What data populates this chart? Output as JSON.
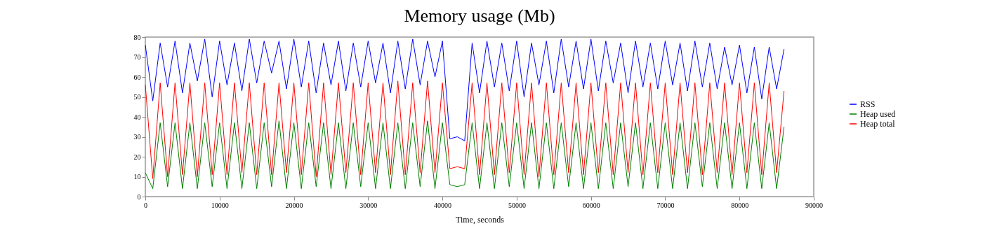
{
  "chart_data": {
    "type": "line",
    "title": "Memory usage (Mb)",
    "xlabel": "Time, seconds",
    "x": [
      0,
      1000,
      2000,
      3000,
      4000,
      5000,
      6000,
      7000,
      8000,
      9000,
      10000,
      11000,
      12000,
      13000,
      14000,
      15000,
      16000,
      17000,
      18000,
      19000,
      20000,
      21000,
      22000,
      23000,
      24000,
      25000,
      26000,
      27000,
      28000,
      29000,
      30000,
      31000,
      32000,
      33000,
      34000,
      35000,
      36000,
      37000,
      38000,
      39000,
      40000,
      41000,
      42000,
      43000,
      44000,
      45000,
      46000,
      47000,
      48000,
      49000,
      50000,
      51000,
      52000,
      53000,
      54000,
      55000,
      56000,
      57000,
      58000,
      59000,
      60000,
      61000,
      62000,
      63000,
      64000,
      65000,
      66000,
      67000,
      68000,
      69000,
      70000,
      71000,
      72000,
      73000,
      74000,
      75000,
      76000,
      77000,
      78000,
      79000,
      80000,
      81000,
      82000,
      83000,
      84000,
      85000,
      86000
    ],
    "series": [
      {
        "name": "RSS",
        "color": "#0000ff",
        "values": [
          76,
          48,
          77,
          55,
          78,
          52,
          77,
          58,
          79,
          50,
          78,
          56,
          77,
          53,
          79,
          57,
          78,
          62,
          78,
          54,
          79,
          55,
          78,
          52,
          77,
          56,
          78,
          53,
          77,
          55,
          78,
          57,
          77,
          52,
          78,
          54,
          79,
          56,
          78,
          60,
          78,
          29,
          30,
          28,
          77,
          52,
          78,
          55,
          77,
          53,
          78,
          50,
          77,
          56,
          78,
          52,
          79,
          55,
          78,
          54,
          79,
          53,
          78,
          57,
          77,
          52,
          78,
          55,
          77,
          54,
          78,
          56,
          77,
          53,
          78,
          55,
          77,
          54,
          75,
          56,
          76,
          52,
          75,
          49,
          75,
          54,
          74
        ]
      },
      {
        "name": "Heap used",
        "color": "#008000",
        "values": [
          12,
          4,
          37,
          5,
          37,
          4,
          37,
          4,
          37,
          5,
          37,
          4,
          37,
          4,
          37,
          4,
          37,
          5,
          38,
          4,
          37,
          4,
          37,
          5,
          37,
          4,
          37,
          4,
          37,
          5,
          37,
          4,
          37,
          4,
          37,
          4,
          37,
          5,
          38,
          4,
          37,
          6,
          5,
          6,
          37,
          4,
          37,
          4,
          37,
          5,
          37,
          4,
          37,
          4,
          37,
          4,
          37,
          5,
          37,
          4,
          37,
          4,
          37,
          4,
          37,
          5,
          37,
          4,
          37,
          4,
          37,
          4,
          37,
          4,
          37,
          5,
          37,
          4,
          37,
          4,
          37,
          4,
          37,
          4,
          37,
          4,
          35
        ]
      },
      {
        "name": "Heap total",
        "color": "#ff0000",
        "values": [
          56,
          9,
          57,
          10,
          57,
          11,
          57,
          10,
          57,
          11,
          57,
          11,
          57,
          12,
          57,
          11,
          57,
          11,
          57,
          12,
          57,
          11,
          57,
          10,
          57,
          11,
          57,
          12,
          57,
          11,
          57,
          12,
          57,
          11,
          58,
          11,
          57,
          12,
          58,
          12,
          57,
          14,
          15,
          14,
          57,
          11,
          57,
          11,
          57,
          12,
          57,
          11,
          57,
          10,
          57,
          11,
          57,
          12,
          57,
          11,
          57,
          12,
          57,
          11,
          57,
          12,
          57,
          11,
          57,
          12,
          57,
          11,
          57,
          12,
          57,
          11,
          57,
          12,
          57,
          11,
          57,
          12,
          57,
          11,
          57,
          12,
          53
        ]
      }
    ],
    "xlim": [
      0,
      90000
    ],
    "xticks": [
      0,
      10000,
      20000,
      30000,
      40000,
      50000,
      60000,
      70000,
      80000,
      90000
    ],
    "ylim": [
      0,
      80
    ],
    "yticks": [
      0,
      10,
      20,
      30,
      40,
      50,
      60,
      70,
      80
    ],
    "legend": "right",
    "grid": false
  }
}
